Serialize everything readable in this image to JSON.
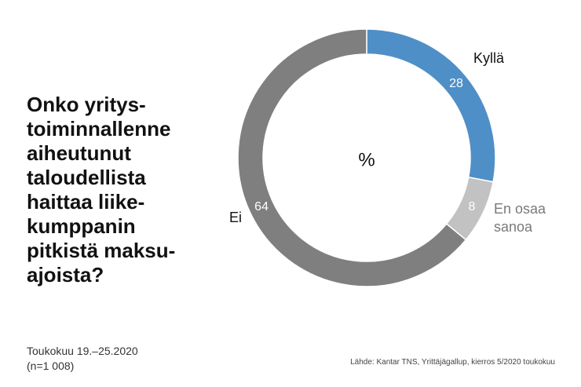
{
  "title_lines": [
    "Onko yritys-",
    "toiminnallenne",
    "aiheutunut",
    "taloudellista",
    "haittaa liike-",
    "kumppanin",
    "pitkistä maksu-",
    "ajoista?"
  ],
  "date_line": "Toukokuu 19.–25.2020",
  "sample_line": "(n=1 008)",
  "source": "Lähde: Kantar TNS, Yrittäjägallup, kierros 5/2020 toukokuu",
  "chart_data": {
    "type": "pie",
    "donut": true,
    "center_label": "%",
    "categories": [
      "Kyllä",
      "En osaa sanoa",
      "Ei"
    ],
    "values": [
      28,
      8,
      64
    ],
    "labels": [
      "28",
      "8",
      "64"
    ],
    "category_label_lines": [
      [
        "Kyllä"
      ],
      [
        "En osaa",
        "sanoa"
      ],
      [
        "Ei"
      ]
    ],
    "colors": [
      "#4f8fc7",
      "#c2c2c2",
      "#7f7f7f"
    ],
    "category_label_colors": [
      "#111111",
      "#7a7a7a",
      "#111111"
    ],
    "unit": "%"
  }
}
